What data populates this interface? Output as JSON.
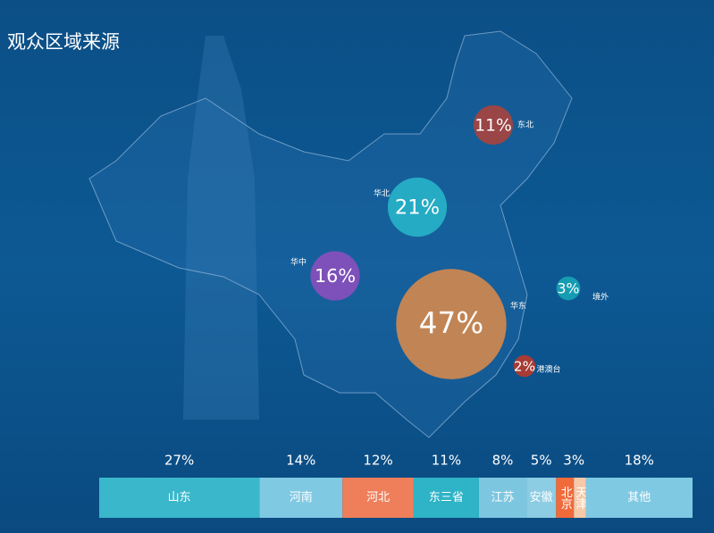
{
  "title": "观众区域来源",
  "chart_data": [
    {
      "type": "bubble",
      "categories": [
        "东北",
        "华北",
        "华中",
        "华东",
        "境外",
        "港澳台"
      ],
      "values": [
        11,
        21,
        16,
        47,
        3,
        2
      ],
      "value_labels": [
        "11%",
        "21%",
        "16%",
        "47%",
        "3%",
        "2%"
      ],
      "colors": [
        "#a8423d",
        "#27b4c9",
        "#8a4fbd",
        "#d4884c",
        "#17a4b6",
        "#b8392c"
      ]
    },
    {
      "type": "stacked-bar",
      "categories": [
        "山东",
        "河南",
        "河北",
        "东三省",
        "江苏",
        "安徽",
        "北京",
        "天津",
        "其他"
      ],
      "values": [
        27,
        14,
        12,
        11,
        8,
        5,
        3,
        2,
        18
      ],
      "value_labels": [
        "27%",
        "14%",
        "12%",
        "11%",
        "8%",
        "5%",
        "3%",
        null,
        "18%"
      ],
      "colors": [
        "#3ab7cb",
        "#7fc9e3",
        "#ef7f5b",
        "#2fb3c6",
        "#7dc6df",
        "#8ccde4",
        "#f06a3a",
        "#f7c9a8",
        "#7fc9e3"
      ]
    }
  ]
}
